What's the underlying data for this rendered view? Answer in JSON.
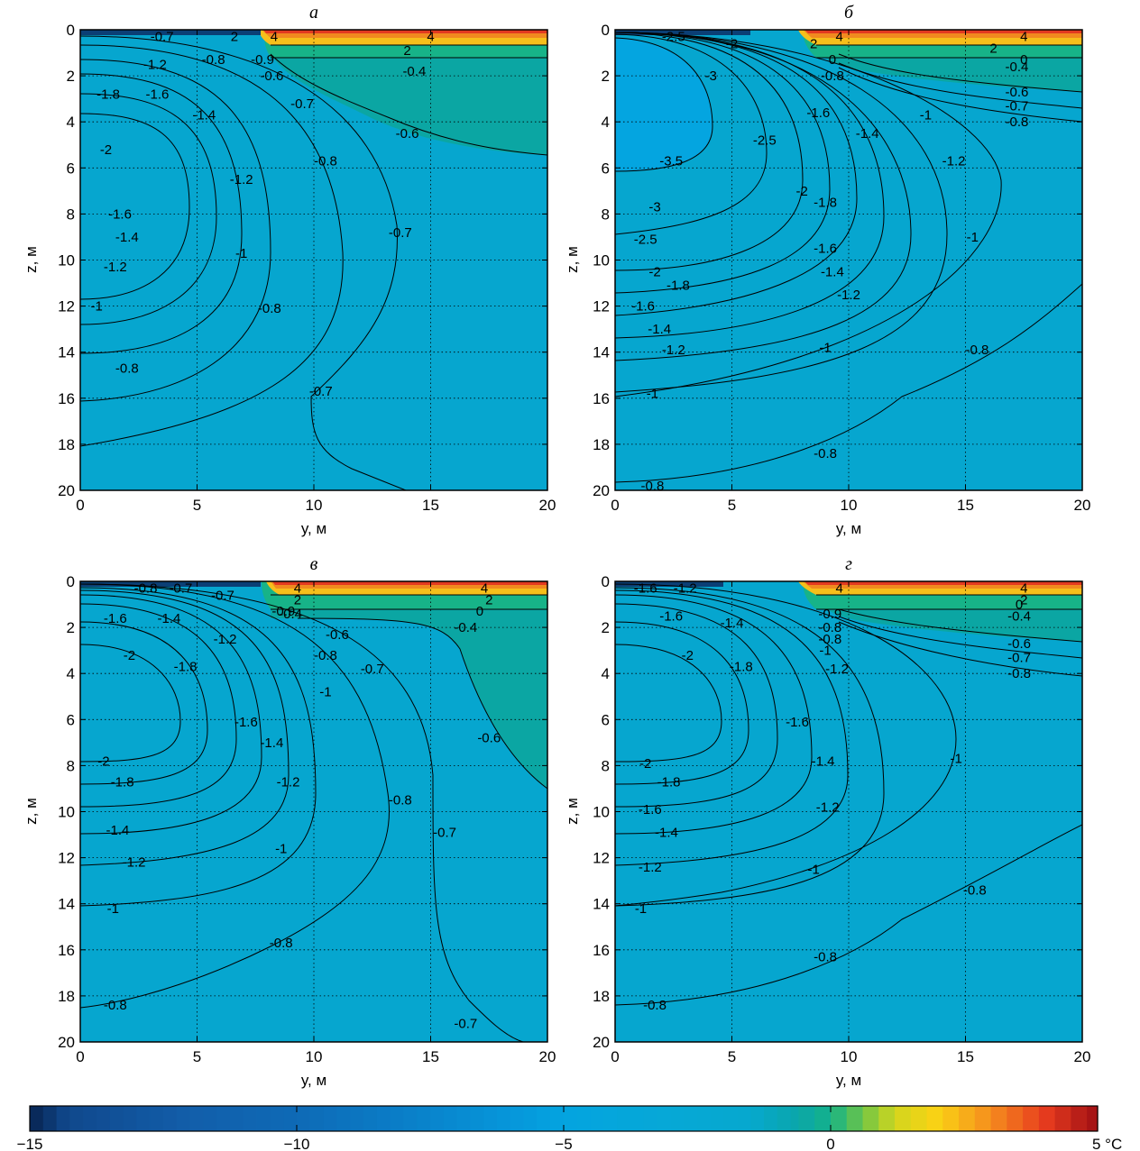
{
  "colorbar": {
    "ticks": [
      -15,
      -10,
      -5,
      0,
      5
    ],
    "tick_labels": [
      "−15",
      "−10",
      "−5",
      "0",
      "5 °C"
    ],
    "range": [
      -15,
      5
    ]
  },
  "chart_data": [
    {
      "type": "heatmap",
      "title": "а",
      "xlabel": "y, м",
      "ylabel": "z, м",
      "xlim": [
        0,
        20
      ],
      "ylim": [
        0,
        20
      ],
      "y_inverted": true,
      "xticks": [
        0,
        5,
        10,
        15,
        20
      ],
      "yticks": [
        0,
        2,
        4,
        6,
        8,
        10,
        12,
        14,
        16,
        18,
        20
      ],
      "grid": true,
      "contour_labels": [
        {
          "text": "4",
          "x": 15,
          "y": 0.3
        },
        {
          "text": "2",
          "x": 14,
          "y": 0.9
        },
        {
          "text": "-0.4",
          "x": 14.3,
          "y": 1.8
        },
        {
          "text": "-0.6",
          "x": 14,
          "y": 4.5
        },
        {
          "text": "-0.9",
          "x": 7.8,
          "y": 1.3
        },
        {
          "text": "-0.6",
          "x": 8.2,
          "y": 2.0
        },
        {
          "text": "-0.7",
          "x": 9.5,
          "y": 3.2
        },
        {
          "text": "-0.8",
          "x": 10.5,
          "y": 5.7
        },
        {
          "text": "-0.7",
          "x": 13.7,
          "y": 8.8
        },
        {
          "text": "-0.8",
          "x": 8.1,
          "y": 12.1
        },
        {
          "text": "-0.7",
          "x": 10.3,
          "y": 15.7
        },
        {
          "text": "-1",
          "x": 6.9,
          "y": 9.7
        },
        {
          "text": "-1.2",
          "x": 6.9,
          "y": 6.5
        },
        {
          "text": "-1.4",
          "x": 5.3,
          "y": 3.7
        },
        {
          "text": "-1.6",
          "x": 3.3,
          "y": 2.8
        },
        {
          "text": "-1.2",
          "x": 3.2,
          "y": 1.5
        },
        {
          "text": "-1.8",
          "x": 1.2,
          "y": 2.8
        },
        {
          "text": "-2",
          "x": 1.1,
          "y": 5.2
        },
        {
          "text": "-1.6",
          "x": 1.7,
          "y": 8.0
        },
        {
          "text": "-1.4",
          "x": 2.0,
          "y": 9.0
        },
        {
          "text": "-1.2",
          "x": 1.5,
          "y": 10.3
        },
        {
          "text": "-1",
          "x": 0.7,
          "y": 12.0
        },
        {
          "text": "-0.8",
          "x": 2.0,
          "y": 14.7
        },
        {
          "text": "-0.8",
          "x": 5.7,
          "y": 1.3
        },
        {
          "text": "-0.7",
          "x": 3.5,
          "y": 0.3
        },
        {
          "text": "2",
          "x": 6.6,
          "y": 0.3
        },
        {
          "text": "4",
          "x": 8.3,
          "y": 0.3
        }
      ]
    },
    {
      "type": "heatmap",
      "title": "б",
      "xlabel": "y, м",
      "ylabel": "z, м",
      "xlim": [
        0,
        20
      ],
      "ylim": [
        0,
        20
      ],
      "y_inverted": true,
      "xticks": [
        0,
        5,
        10,
        15,
        20
      ],
      "yticks": [
        0,
        2,
        4,
        6,
        8,
        10,
        12,
        14,
        16,
        18,
        20
      ],
      "grid": true,
      "contour_labels": [
        {
          "text": "4",
          "x": 17.5,
          "y": 0.3
        },
        {
          "text": "2",
          "x": 16.2,
          "y": 0.8
        },
        {
          "text": "0",
          "x": 17.5,
          "y": 1.3
        },
        {
          "text": "-0.4",
          "x": 17.2,
          "y": 1.6
        },
        {
          "text": "-0.6",
          "x": 17.2,
          "y": 2.7
        },
        {
          "text": "-0.7",
          "x": 17.2,
          "y": 3.3
        },
        {
          "text": "-0.8",
          "x": 17.2,
          "y": 4.0
        },
        {
          "text": "4",
          "x": 9.6,
          "y": 0.3
        },
        {
          "text": "2",
          "x": 8.5,
          "y": 0.6
        },
        {
          "text": "0",
          "x": 9.3,
          "y": 1.3
        },
        {
          "text": "-0.8",
          "x": 9.3,
          "y": 2.0
        },
        {
          "text": "-1",
          "x": 13.3,
          "y": 3.7
        },
        {
          "text": "-1.2",
          "x": 14.5,
          "y": 5.7
        },
        {
          "text": "-1.4",
          "x": 10.8,
          "y": 4.5
        },
        {
          "text": "-1.6",
          "x": 8.7,
          "y": 3.6
        },
        {
          "text": "-1.8",
          "x": 9.0,
          "y": 7.5
        },
        {
          "text": "-2",
          "x": 8.0,
          "y": 7.0
        },
        {
          "text": "-2.5",
          "x": 6.4,
          "y": 4.8
        },
        {
          "text": "-3",
          "x": 4.1,
          "y": 2.0
        },
        {
          "text": "-3.5",
          "x": 2.4,
          "y": 5.7
        },
        {
          "text": "-3",
          "x": 1.7,
          "y": 7.7
        },
        {
          "text": "-2.5",
          "x": 1.3,
          "y": 9.1
        },
        {
          "text": "-2",
          "x": 1.7,
          "y": 10.5
        },
        {
          "text": "-1.8",
          "x": 2.7,
          "y": 11.1
        },
        {
          "text": "-1.6",
          "x": 1.2,
          "y": 12.0
        },
        {
          "text": "-1.4",
          "x": 1.9,
          "y": 13.0
        },
        {
          "text": "-1.2",
          "x": 2.5,
          "y": 13.9
        },
        {
          "text": "-1",
          "x": 1.6,
          "y": 15.8
        },
        {
          "text": "-1",
          "x": 9.0,
          "y": 13.8
        },
        {
          "text": "-1.2",
          "x": 10.0,
          "y": 11.5
        },
        {
          "text": "-1.4",
          "x": 9.3,
          "y": 10.5
        },
        {
          "text": "-1.6",
          "x": 9.0,
          "y": 9.5
        },
        {
          "text": "-1",
          "x": 15.3,
          "y": 9.0
        },
        {
          "text": "-0.8",
          "x": 15.5,
          "y": 13.9
        },
        {
          "text": "-0.8",
          "x": 9.0,
          "y": 18.4
        },
        {
          "text": "-0.8",
          "x": 1.6,
          "y": 19.8
        },
        {
          "text": "-2",
          "x": 5.0,
          "y": 0.6
        },
        {
          "text": "-2.5",
          "x": 2.5,
          "y": 0.3
        }
      ]
    },
    {
      "type": "heatmap",
      "title": "в",
      "xlabel": "y, м",
      "ylabel": "z, м",
      "xlim": [
        0,
        20
      ],
      "ylim": [
        0,
        20
      ],
      "y_inverted": true,
      "xticks": [
        0,
        5,
        10,
        15,
        20
      ],
      "yticks": [
        0,
        2,
        4,
        6,
        8,
        10,
        12,
        14,
        16,
        18,
        20
      ],
      "grid": true,
      "contour_labels": [
        {
          "text": "4",
          "x": 17.3,
          "y": 0.3
        },
        {
          "text": "2",
          "x": 17.5,
          "y": 0.8
        },
        {
          "text": "0",
          "x": 17.1,
          "y": 1.3
        },
        {
          "text": "-0.4",
          "x": 16.5,
          "y": 2.0
        },
        {
          "text": "4",
          "x": 9.3,
          "y": 0.3
        },
        {
          "text": "2",
          "x": 9.3,
          "y": 0.8
        },
        {
          "text": "-0.4",
          "x": 9.0,
          "y": 1.4
        },
        {
          "text": "-0.9",
          "x": 8.7,
          "y": 1.3
        },
        {
          "text": "-0.6",
          "x": 11.0,
          "y": 2.3
        },
        {
          "text": "-0.8",
          "x": 10.5,
          "y": 3.2
        },
        {
          "text": "-0.7",
          "x": 12.5,
          "y": 3.8
        },
        {
          "text": "-1",
          "x": 10.5,
          "y": 4.8
        },
        {
          "text": "-0.6",
          "x": 17.5,
          "y": 6.8
        },
        {
          "text": "-1.2",
          "x": 6.2,
          "y": 2.5
        },
        {
          "text": "-1.4",
          "x": 3.8,
          "y": 1.6
        },
        {
          "text": "-1.6",
          "x": 1.5,
          "y": 1.6
        },
        {
          "text": "-2",
          "x": 2.1,
          "y": 3.2
        },
        {
          "text": "-1.8",
          "x": 4.5,
          "y": 3.7
        },
        {
          "text": "-1.6",
          "x": 7.1,
          "y": 6.1
        },
        {
          "text": "-1.4",
          "x": 8.2,
          "y": 7.0
        },
        {
          "text": "-1.2",
          "x": 8.9,
          "y": 8.7
        },
        {
          "text": "-1",
          "x": 8.6,
          "y": 11.6
        },
        {
          "text": "-0.8",
          "x": 13.7,
          "y": 9.5
        },
        {
          "text": "-0.7",
          "x": 15.6,
          "y": 10.9
        },
        {
          "text": "-0.8",
          "x": 8.6,
          "y": 15.7
        },
        {
          "text": "-0.7",
          "x": 16.5,
          "y": 19.2
        },
        {
          "text": "-2",
          "x": 1.0,
          "y": 7.8
        },
        {
          "text": "-1.8",
          "x": 1.8,
          "y": 8.7
        },
        {
          "text": "-1.4",
          "x": 1.6,
          "y": 10.8
        },
        {
          "text": "-1.2",
          "x": 2.3,
          "y": 12.2
        },
        {
          "text": "-1",
          "x": 1.4,
          "y": 14.2
        },
        {
          "text": "-0.8",
          "x": 1.5,
          "y": 18.4
        },
        {
          "text": "-0.8",
          "x": 2.8,
          "y": 0.3
        },
        {
          "text": "-0.7",
          "x": 4.3,
          "y": 0.3
        },
        {
          "text": "-0.7",
          "x": 6.1,
          "y": 0.6
        }
      ]
    },
    {
      "type": "heatmap",
      "title": "г",
      "xlabel": "y, м",
      "ylabel": "z, м",
      "xlim": [
        0,
        20
      ],
      "ylim": [
        0,
        20
      ],
      "y_inverted": true,
      "xticks": [
        0,
        5,
        10,
        15,
        20
      ],
      "yticks": [
        0,
        2,
        4,
        6,
        8,
        10,
        12,
        14,
        16,
        18,
        20
      ],
      "grid": true,
      "contour_labels": [
        {
          "text": "4",
          "x": 17.5,
          "y": 0.3
        },
        {
          "text": "2",
          "x": 17.5,
          "y": 0.8
        },
        {
          "text": "0",
          "x": 17.3,
          "y": 1.0
        },
        {
          "text": "-0.4",
          "x": 17.3,
          "y": 1.5
        },
        {
          "text": "-0.6",
          "x": 17.3,
          "y": 2.7
        },
        {
          "text": "-0.7",
          "x": 17.3,
          "y": 3.3
        },
        {
          "text": "-0.8",
          "x": 17.3,
          "y": 4.0
        },
        {
          "text": "4",
          "x": 9.6,
          "y": 0.3
        },
        {
          "text": "-0.9",
          "x": 9.2,
          "y": 1.4
        },
        {
          "text": "-0.8",
          "x": 9.2,
          "y": 2.0
        },
        {
          "text": "-0.8",
          "x": 9.2,
          "y": 2.5
        },
        {
          "text": "-1",
          "x": 9.0,
          "y": 3.0
        },
        {
          "text": "-1.2",
          "x": 9.5,
          "y": 3.8
        },
        {
          "text": "-1.4",
          "x": 5.0,
          "y": 1.8
        },
        {
          "text": "-1.6",
          "x": 2.4,
          "y": 1.5
        },
        {
          "text": "-2",
          "x": 3.1,
          "y": 3.2
        },
        {
          "text": "-1.8",
          "x": 5.4,
          "y": 3.7
        },
        {
          "text": "-1.6",
          "x": 7.8,
          "y": 6.1
        },
        {
          "text": "-1.4",
          "x": 8.9,
          "y": 7.8
        },
        {
          "text": "-1.2",
          "x": 9.1,
          "y": 9.8
        },
        {
          "text": "-1",
          "x": 8.5,
          "y": 12.5
        },
        {
          "text": "-1",
          "x": 14.6,
          "y": 7.7
        },
        {
          "text": "-0.8",
          "x": 15.4,
          "y": 13.4
        },
        {
          "text": "-0.8",
          "x": 9.0,
          "y": 16.3
        },
        {
          "text": "-2",
          "x": 1.3,
          "y": 7.9
        },
        {
          "text": "-1.8",
          "x": 2.3,
          "y": 8.7
        },
        {
          "text": "-1.6",
          "x": 1.5,
          "y": 9.9
        },
        {
          "text": "-1.4",
          "x": 2.2,
          "y": 10.9
        },
        {
          "text": "-1.2",
          "x": 1.5,
          "y": 12.4
        },
        {
          "text": "-1",
          "x": 1.1,
          "y": 14.2
        },
        {
          "text": "-0.8",
          "x": 1.7,
          "y": 18.4
        },
        {
          "text": "-1.2",
          "x": 3.0,
          "y": 0.3
        },
        {
          "text": "-1.6",
          "x": 1.3,
          "y": 0.3
        }
      ]
    }
  ]
}
